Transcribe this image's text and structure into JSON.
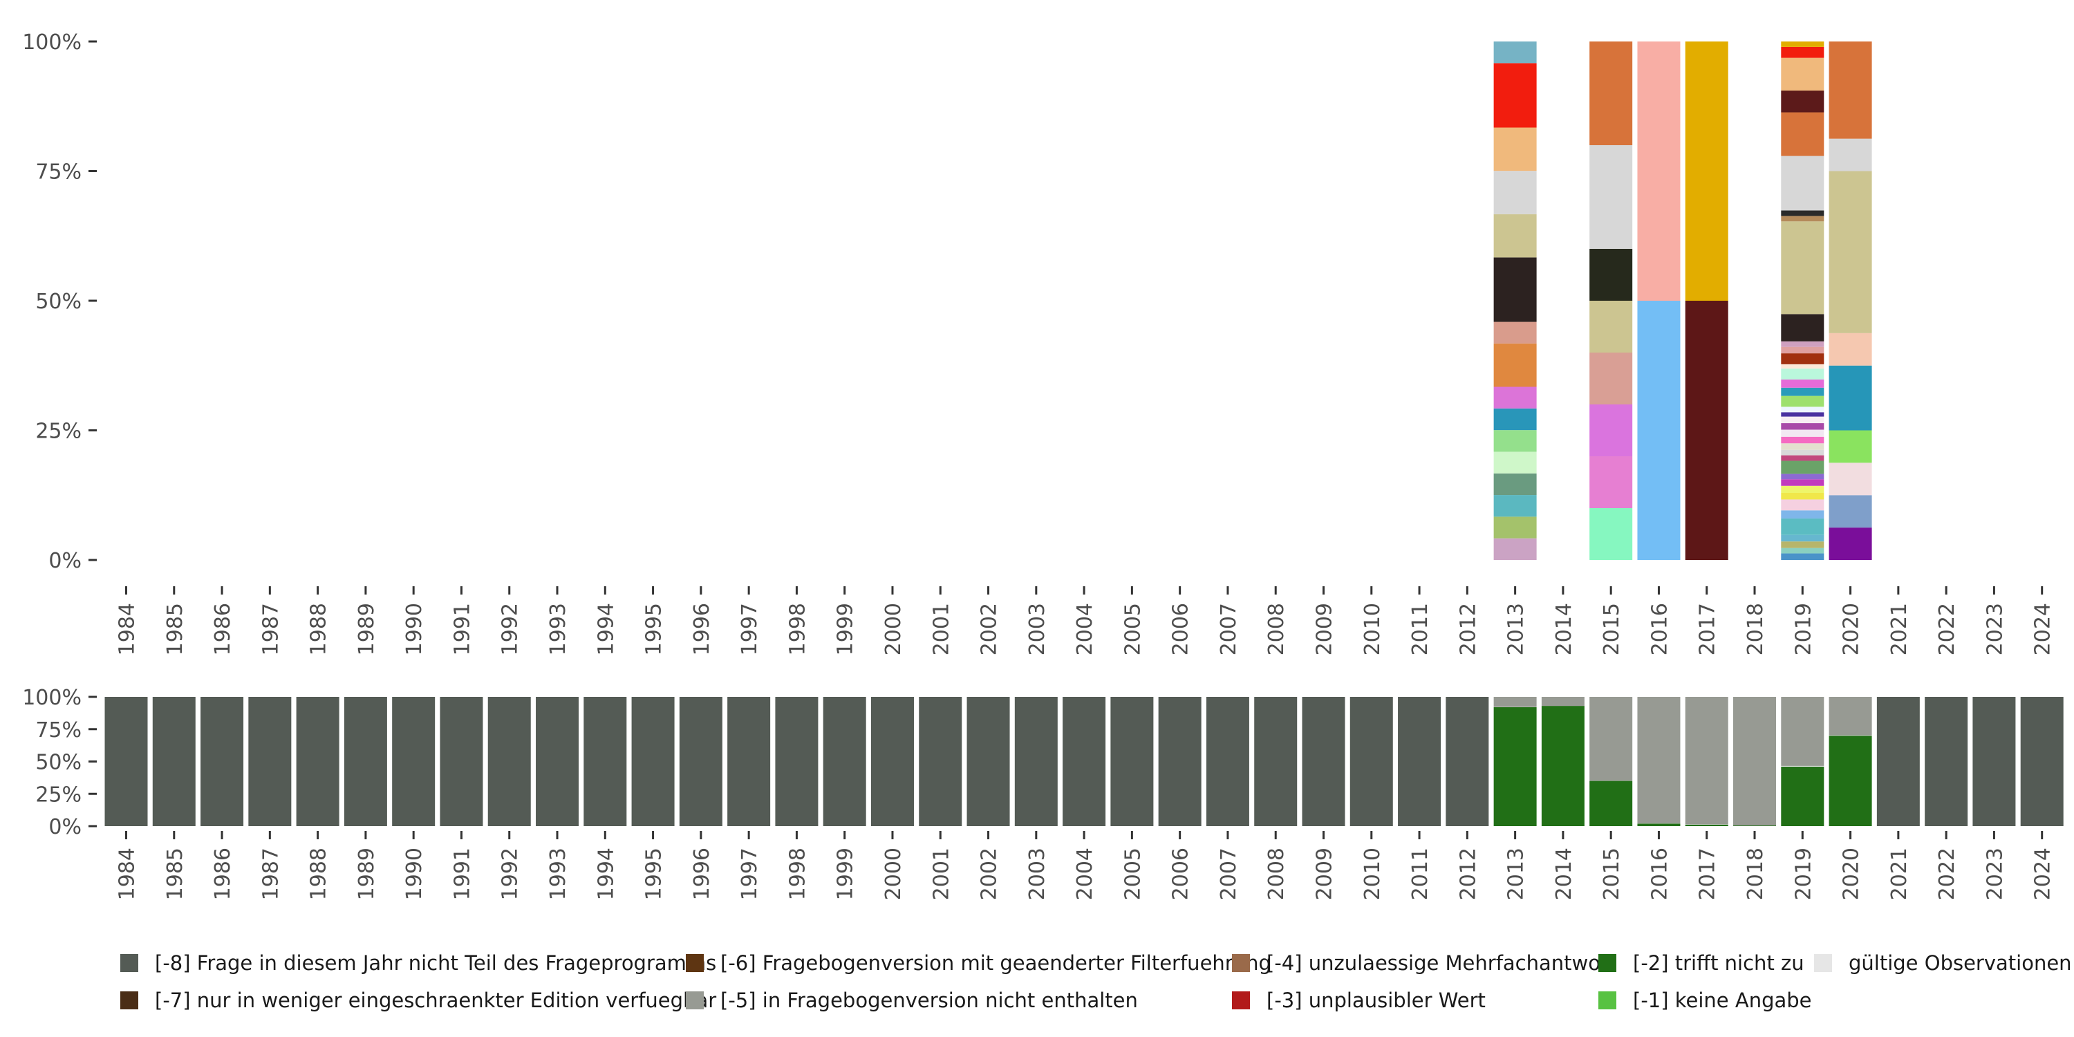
{
  "chart_data": [
    {
      "type": "stacked-bar",
      "name": "valid-observations-distribution",
      "title": "",
      "xlabel": "",
      "ylabel": "",
      "ylim": [
        0,
        1
      ],
      "y_ticks": [
        "0%",
        "25%",
        "50%",
        "75%",
        "100%"
      ],
      "categories": [
        "1984",
        "1985",
        "1986",
        "1987",
        "1988",
        "1989",
        "1990",
        "1991",
        "1992",
        "1993",
        "1994",
        "1995",
        "1996",
        "1997",
        "1998",
        "1999",
        "2000",
        "2001",
        "2002",
        "2003",
        "2004",
        "2005",
        "2006",
        "2007",
        "2008",
        "2009",
        "2010",
        "2011",
        "2012",
        "2013",
        "2014",
        "2015",
        "2016",
        "2017",
        "2018",
        "2019",
        "2020",
        "2021",
        "2022",
        "2023",
        "2024"
      ],
      "bars": [
        {
          "year": "2013",
          "segments": [
            {
              "value": 0.042,
              "color": "#cba3c4"
            },
            {
              "value": 0.042,
              "color": "#a4c26b"
            },
            {
              "value": 0.042,
              "color": "#5bb8c0"
            },
            {
              "value": 0.042,
              "color": "#6a9b80"
            },
            {
              "value": 0.042,
              "color": "#cff7c9"
            },
            {
              "value": 0.042,
              "color": "#94e08c"
            },
            {
              "value": 0.042,
              "color": "#2996b9"
            },
            {
              "value": 0.042,
              "color": "#dc74d8"
            },
            {
              "value": 0.084,
              "color": "#e0883f"
            },
            {
              "value": 0.042,
              "color": "#d99c8c"
            },
            {
              "value": 0.125,
              "color": "#2c2220"
            },
            {
              "value": 0.084,
              "color": "#ccc591"
            },
            {
              "value": 0.084,
              "color": "#d7d7d7"
            },
            {
              "value": 0.084,
              "color": "#f0b97c"
            },
            {
              "value": 0.125,
              "color": "#f21d0e"
            },
            {
              "value": 0.042,
              "color": "#76b3c5"
            }
          ]
        },
        {
          "year": "2015",
          "segments": [
            {
              "value": 0.1,
              "color": "#86f7c0"
            },
            {
              "value": 0.1,
              "color": "#e67fd2"
            },
            {
              "value": 0.1,
              "color": "#da74de"
            },
            {
              "value": 0.1,
              "color": "#d99f95"
            },
            {
              "value": 0.1,
              "color": "#ccc591"
            },
            {
              "value": 0.1,
              "color": "#26291c"
            },
            {
              "value": 0.2,
              "color": "#d7d7d7"
            },
            {
              "value": 0.2,
              "color": "#d7733a"
            }
          ]
        },
        {
          "year": "2016",
          "segments": [
            {
              "value": 0.5,
              "color": "#73bef5"
            },
            {
              "value": 0.5,
              "color": "#f8aea5"
            }
          ]
        },
        {
          "year": "2017",
          "segments": [
            {
              "value": 0.5,
              "color": "#5d1717"
            },
            {
              "value": 0.5,
              "color": "#e2ad00"
            }
          ]
        },
        {
          "year": "2019",
          "segments": [
            {
              "value": 0.012,
              "color": "#4a93c9"
            },
            {
              "value": 0.01,
              "color": "#8ad0c0"
            },
            {
              "value": 0.012,
              "color": "#b7b56a"
            },
            {
              "value": 0.012,
              "color": "#66b7cf"
            },
            {
              "value": 0.03,
              "color": "#5bbcc2"
            },
            {
              "value": 0.015,
              "color": "#7fb6ea"
            },
            {
              "value": 0.02,
              "color": "#f5d0e0"
            },
            {
              "value": 0.012,
              "color": "#f0e74a"
            },
            {
              "value": 0.013,
              "color": "#eef56a"
            },
            {
              "value": 0.012,
              "color": "#c13bbd"
            },
            {
              "value": 0.01,
              "color": "#8c6bd2"
            },
            {
              "value": 0.024,
              "color": "#6aa368"
            },
            {
              "value": 0.01,
              "color": "#c2477d"
            },
            {
              "value": 0.01,
              "color": "#d9d9d9"
            },
            {
              "value": 0.012,
              "color": "#e3e0ce"
            },
            {
              "value": 0.012,
              "color": "#f56bc2"
            },
            {
              "value": 0.013,
              "color": "#f2e8f2"
            },
            {
              "value": 0.012,
              "color": "#a84aa8"
            },
            {
              "value": 0.012,
              "color": "#f7eef3"
            },
            {
              "value": 0.008,
              "color": "#4a32a0"
            },
            {
              "value": 0.01,
              "color": "#eef6ff"
            },
            {
              "value": 0.02,
              "color": "#9ee06d"
            },
            {
              "value": 0.015,
              "color": "#2a9bba"
            },
            {
              "value": 0.015,
              "color": "#e56bd8"
            },
            {
              "value": 0.02,
              "color": "#baf7dc"
            },
            {
              "value": 0.008,
              "color": "#fde8d8"
            },
            {
              "value": 0.02,
              "color": "#a1300f"
            },
            {
              "value": 0.012,
              "color": "#e0a0a0"
            },
            {
              "value": 0.01,
              "color": "#cfa0c0"
            },
            {
              "value": 0.05,
              "color": "#2c2220"
            },
            {
              "value": 0.17,
              "color": "#ccc591"
            },
            {
              "value": 0.01,
              "color": "#b48a5a"
            },
            {
              "value": 0.01,
              "color": "#2a2a2a"
            },
            {
              "value": 0.1,
              "color": "#d7d7d7"
            },
            {
              "value": 0.08,
              "color": "#d7733a"
            },
            {
              "value": 0.04,
              "color": "#5c1a1a"
            },
            {
              "value": 0.06,
              "color": "#f0b97c"
            },
            {
              "value": 0.02,
              "color": "#f21d0e"
            },
            {
              "value": 0.01,
              "color": "#e2ad00"
            }
          ]
        },
        {
          "year": "2020",
          "segments": [
            {
              "value": 0.0625,
              "color": "#7a0e9a"
            },
            {
              "value": 0.0625,
              "color": "#7f9fca"
            },
            {
              "value": 0.0625,
              "color": "#f2dde0"
            },
            {
              "value": 0.0625,
              "color": "#8ae35f"
            },
            {
              "value": 0.125,
              "color": "#2696b8"
            },
            {
              "value": 0.0625,
              "color": "#f5c8b0"
            },
            {
              "value": 0.3125,
              "color": "#ccc591"
            },
            {
              "value": 0.0625,
              "color": "#d7d7d7"
            },
            {
              "value": 0.1875,
              "color": "#d7733a"
            }
          ]
        }
      ]
    },
    {
      "type": "stacked-bar",
      "name": "missing-codes-distribution",
      "title": "",
      "xlabel": "",
      "ylabel": "",
      "ylim": [
        0,
        1
      ],
      "y_ticks": [
        "0%",
        "25%",
        "50%",
        "75%",
        "100%"
      ],
      "categories": [
        "1984",
        "1985",
        "1986",
        "1987",
        "1988",
        "1989",
        "1990",
        "1991",
        "1992",
        "1993",
        "1994",
        "1995",
        "1996",
        "1997",
        "1998",
        "1999",
        "2000",
        "2001",
        "2002",
        "2003",
        "2004",
        "2005",
        "2006",
        "2007",
        "2008",
        "2009",
        "2010",
        "2011",
        "2012",
        "2013",
        "2014",
        "2015",
        "2016",
        "2017",
        "2018",
        "2019",
        "2020",
        "2021",
        "2022",
        "2023",
        "2024"
      ],
      "series_colors": {
        "m8": "#545b55",
        "m5": "#979a93",
        "m2": "#216f16",
        "valid": "#e6e6e6"
      },
      "series": [
        {
          "name": "[-8] Frage in diesem Jahr nicht Teil des Frageprogramms",
          "key": "m8",
          "values": [
            1,
            1,
            1,
            1,
            1,
            1,
            1,
            1,
            1,
            1,
            1,
            1,
            1,
            1,
            1,
            1,
            1,
            1,
            1,
            1,
            1,
            1,
            1,
            1,
            1,
            1,
            1,
            1,
            1,
            0,
            0,
            0,
            0,
            0,
            0,
            0,
            0,
            1,
            1,
            1,
            1
          ]
        },
        {
          "name": "[-2] trifft nicht zu",
          "key": "m2",
          "values": [
            0,
            0,
            0,
            0,
            0,
            0,
            0,
            0,
            0,
            0,
            0,
            0,
            0,
            0,
            0,
            0,
            0,
            0,
            0,
            0,
            0,
            0,
            0,
            0,
            0,
            0,
            0,
            0,
            0,
            0.92,
            0.93,
            0.35,
            0.02,
            0.012,
            0.005,
            0.46,
            0.7,
            0,
            0,
            0,
            0
          ]
        },
        {
          "name": "gültige Observationen",
          "key": "valid",
          "values": [
            0,
            0,
            0,
            0,
            0,
            0,
            0,
            0,
            0,
            0,
            0,
            0,
            0,
            0,
            0,
            0,
            0,
            0,
            0,
            0,
            0,
            0,
            0,
            0,
            0,
            0,
            0,
            0,
            0,
            0.002,
            0,
            0.001,
            0.001,
            0.002,
            0,
            0.006,
            0.003,
            0,
            0,
            0,
            0
          ]
        },
        {
          "name": "[-5] in Fragebogenversion nicht enthalten",
          "key": "m5",
          "values": [
            0,
            0,
            0,
            0,
            0,
            0,
            0,
            0,
            0,
            0,
            0,
            0,
            0,
            0,
            0,
            0,
            0,
            0,
            0,
            0,
            0,
            0,
            0,
            0,
            0,
            0,
            0,
            0,
            0,
            0.078,
            0.07,
            0.649,
            0.979,
            0.986,
            0.995,
            0.534,
            0.297,
            0,
            0,
            0,
            0
          ]
        }
      ]
    }
  ],
  "legend": [
    {
      "label": "[-8] Frage in diesem Jahr nicht Teil des Frageprogramms",
      "color": "#545b55"
    },
    {
      "label": "[-7] nur in weniger eingeschraenkter Edition verfuegbar",
      "color": "#4a2d16"
    },
    {
      "label": "[-6] Fragebogenversion mit geaenderter Filterfuehrung",
      "color": "#5e3512"
    },
    {
      "label": "[-5] in Fragebogenversion nicht enthalten",
      "color": "#979a93"
    },
    {
      "label": "[-4] unzulaessige Mehrfachantwort",
      "color": "#9a6a4a"
    },
    {
      "label": "[-3] unplausibler Wert",
      "color": "#b21a1a"
    },
    {
      "label": "[-2] trifft nicht zu",
      "color": "#216f16"
    },
    {
      "label": "[-1] keine Angabe",
      "color": "#58c242"
    },
    {
      "label": "gültige Observationen",
      "color": "#e6e6e6"
    }
  ]
}
